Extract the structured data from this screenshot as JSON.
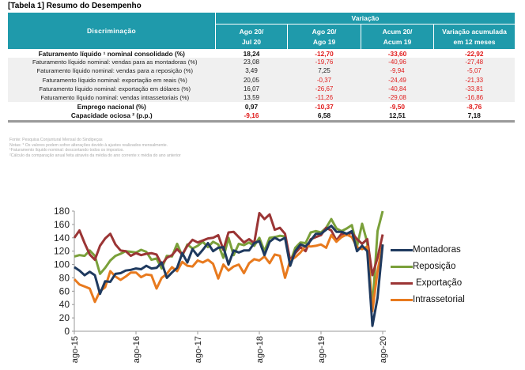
{
  "title": "[Tabela 1] Resumo do Desempenho",
  "table": {
    "header_disc": "Discriminação",
    "header_group": "Variação",
    "columns": [
      {
        "line1": "Ago 20/",
        "line2": "Jul 20"
      },
      {
        "line1": "Ago 20/",
        "line2": "Ago 19"
      },
      {
        "line1": "Acum 20/",
        "line2": "Acum 19"
      },
      {
        "line1": "Variação acumulada",
        "line2": "em 12 meses"
      }
    ],
    "rows": [
      {
        "label": "Faturamento líquido ¹ nominal consolidado (%)",
        "kind": "main",
        "values": [
          "18,24",
          "-12,70",
          "-33,60",
          "-22,92"
        ]
      },
      {
        "label": "Faturamento líquido nominal: vendas para as montadoras (%)",
        "kind": "sub",
        "values": [
          "23,08",
          "-19,76",
          "-40,96",
          "-27,48"
        ]
      },
      {
        "label": "Faturamento líquido nominal: vendas para a reposição (%)",
        "kind": "sub",
        "values": [
          "3,49",
          "7,25",
          "-9,94",
          "-5,07"
        ]
      },
      {
        "label": "Faturamento líquido nominal: exportação em reais (%)",
        "kind": "sub",
        "values": [
          "20,05",
          "-0,37",
          "-24,49",
          "-21,33"
        ]
      },
      {
        "label": "Faturamento líquido nominal: exportação em dólares (%)",
        "kind": "sub",
        "values": [
          "16,07",
          "-26,67",
          "-40,84",
          "-33,81"
        ]
      },
      {
        "label": "Faturamento líquido nominal: vendas intrassetoriais (%)",
        "kind": "sub",
        "values": [
          "13,59",
          "-11,26",
          "-29,08",
          "-16,86"
        ]
      },
      {
        "label": "Emprego nacional (%)",
        "kind": "main",
        "values": [
          "0,97",
          "-10,37",
          "-9,50",
          "-8,76"
        ]
      },
      {
        "label": "Capacidade ociosa ² (p.p.)",
        "kind": "main",
        "values": [
          "-9,16",
          "6,58",
          "12,51",
          "7,18"
        ]
      }
    ],
    "negative_color": "#e02020",
    "header_color": "#1f9aab"
  },
  "notes": [
    "Fonte: Pesquisa Conjuntural Mensal do Sindipeças",
    "Notas: * Os valores podem sofrer alterações devido à ajustes realizados mensalmente.",
    "¹Faturamento líquido nominal: descontando todos os impostos.",
    "²Cálculo da comparação anual feita através da média do ano corrente x média do ano anterior"
  ],
  "chart_data": {
    "type": "line",
    "title": "",
    "xlabel": "",
    "ylabel": "",
    "ylim": [
      0,
      180
    ],
    "yticks": [
      0,
      20,
      40,
      60,
      80,
      100,
      120,
      140,
      160,
      180
    ],
    "xtick_labels": [
      "ago-15",
      "ago-16",
      "ago-17",
      "ago-18",
      "ago-19",
      "ago-20"
    ],
    "x_months": 61,
    "grid": false,
    "legend_position": "right",
    "series": [
      {
        "name": "Montadoras",
        "color": "#1f3a5f",
        "values": [
          96,
          91,
          84,
          89,
          84,
          56,
          75,
          74,
          86,
          87,
          91,
          92,
          94,
          93,
          98,
          94,
          95,
          103,
          80,
          88,
          95,
          117,
          103,
          123,
          113,
          122,
          132,
          120,
          125,
          126,
          100,
          121,
          118,
          121,
          121,
          132,
          135,
          114,
          134,
          140,
          136,
          140,
          98,
          120,
          130,
          127,
          136,
          146,
          146,
          152,
          158,
          149,
          149,
          146,
          150,
          120,
          128,
          120,
          8,
          50,
          130
        ]
      },
      {
        "name": "Reposição",
        "color": "#7aa03a",
        "values": [
          112,
          114,
          113,
          121,
          113,
          86,
          95,
          106,
          113,
          116,
          120,
          119,
          118,
          122,
          119,
          107,
          109,
          94,
          113,
          112,
          131,
          113,
          130,
          124,
          128,
          134,
          126,
          134,
          130,
          110,
          140,
          114,
          131,
          129,
          133,
          128,
          140,
          120,
          140,
          141,
          143,
          142,
          103,
          125,
          133,
          132,
          148,
          150,
          148,
          155,
          168,
          154,
          150,
          154,
          159,
          127,
          161,
          133,
          35,
          150,
          180
        ]
      },
      {
        "name": "Exportação",
        "color": "#9b3535",
        "values": [
          140,
          151,
          132,
          115,
          107,
          128,
          139,
          146,
          130,
          121,
          120,
          113,
          117,
          114,
          116,
          117,
          115,
          100,
          110,
          114,
          123,
          115,
          128,
          137,
          133,
          136,
          139,
          140,
          144,
          122,
          148,
          149,
          141,
          133,
          138,
          132,
          177,
          168,
          175,
          152,
          155,
          146,
          106,
          117,
          126,
          120,
          138,
          141,
          144,
          155,
          151,
          136,
          146,
          144,
          148,
          138,
          131,
          138,
          84,
          110,
          145
        ]
      },
      {
        "name": "Intrassetorial",
        "color": "#e87a1e",
        "values": [
          78,
          70,
          67,
          64,
          44,
          60,
          66,
          90,
          82,
          77,
          82,
          88,
          88,
          81,
          85,
          84,
          64,
          80,
          86,
          96,
          90,
          104,
          98,
          97,
          106,
          103,
          107,
          101,
          79,
          100,
          91,
          97,
          100,
          87,
          102,
          108,
          106,
          112,
          102,
          115,
          113,
          80,
          106,
          111,
          118,
          128,
          127,
          128,
          130,
          125,
          144,
          134,
          141,
          145,
          141,
          126,
          123,
          127,
          30,
          90,
          130
        ]
      }
    ]
  }
}
